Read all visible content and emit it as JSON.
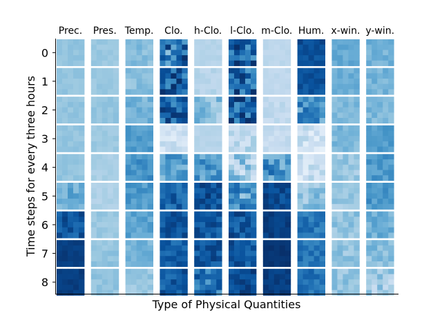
{
  "chart_data": {
    "type": "heatmap",
    "title": "",
    "xlabel": "Type of Physical Quantities",
    "ylabel": "Time steps for every three hours",
    "columns": [
      "Prec.",
      "Pres.",
      "Temp.",
      "Clo.",
      "h-Clo.",
      "l-Clo.",
      "m-Clo.",
      "Hum.",
      "x-win.",
      "y-win."
    ],
    "rows": [
      "0",
      "1",
      "2",
      "3",
      "4",
      "5",
      "6",
      "7",
      "8"
    ],
    "colormap": "Blues",
    "value_range": [
      0,
      1
    ],
    "cell_grid": [
      5,
      5
    ],
    "grid": false,
    "mean_values": [
      [
        0.4,
        0.38,
        0.44,
        0.7,
        0.3,
        0.8,
        0.28,
        0.88,
        0.52,
        0.48
      ],
      [
        0.4,
        0.38,
        0.42,
        0.82,
        0.3,
        0.82,
        0.27,
        0.86,
        0.5,
        0.48
      ],
      [
        0.4,
        0.4,
        0.48,
        0.8,
        0.4,
        0.82,
        0.26,
        0.62,
        0.46,
        0.46
      ],
      [
        0.4,
        0.38,
        0.58,
        0.2,
        0.3,
        0.28,
        0.24,
        0.2,
        0.46,
        0.58
      ],
      [
        0.4,
        0.34,
        0.62,
        0.55,
        0.58,
        0.35,
        0.62,
        0.22,
        0.38,
        0.6
      ],
      [
        0.52,
        0.32,
        0.58,
        0.8,
        0.88,
        0.6,
        0.9,
        0.4,
        0.38,
        0.6
      ],
      [
        0.85,
        0.38,
        0.55,
        0.86,
        0.85,
        0.85,
        0.95,
        0.72,
        0.4,
        0.5
      ],
      [
        0.95,
        0.4,
        0.48,
        0.82,
        0.86,
        0.86,
        0.98,
        0.74,
        0.4,
        0.44
      ],
      [
        0.95,
        0.4,
        0.38,
        0.84,
        0.72,
        0.9,
        0.95,
        0.74,
        0.4,
        0.36
      ]
    ],
    "variation": [
      [
        0.03,
        0.03,
        0.06,
        0.3,
        0.02,
        0.3,
        0.02,
        0.06,
        0.05,
        0.06
      ],
      [
        0.03,
        0.03,
        0.06,
        0.22,
        0.04,
        0.25,
        0.02,
        0.06,
        0.05,
        0.06
      ],
      [
        0.03,
        0.03,
        0.07,
        0.18,
        0.15,
        0.25,
        0.05,
        0.18,
        0.06,
        0.06
      ],
      [
        0.03,
        0.03,
        0.06,
        0.1,
        0.02,
        0.1,
        0.05,
        0.12,
        0.06,
        0.06
      ],
      [
        0.03,
        0.03,
        0.08,
        0.15,
        0.15,
        0.2,
        0.2,
        0.12,
        0.08,
        0.08
      ],
      [
        0.1,
        0.03,
        0.08,
        0.12,
        0.1,
        0.25,
        0.08,
        0.12,
        0.08,
        0.08
      ],
      [
        0.1,
        0.04,
        0.07,
        0.08,
        0.1,
        0.12,
        0.04,
        0.1,
        0.08,
        0.08
      ],
      [
        0.03,
        0.04,
        0.06,
        0.1,
        0.1,
        0.12,
        0.02,
        0.08,
        0.08,
        0.1
      ],
      [
        0.03,
        0.04,
        0.06,
        0.1,
        0.18,
        0.08,
        0.04,
        0.08,
        0.08,
        0.14
      ]
    ]
  }
}
